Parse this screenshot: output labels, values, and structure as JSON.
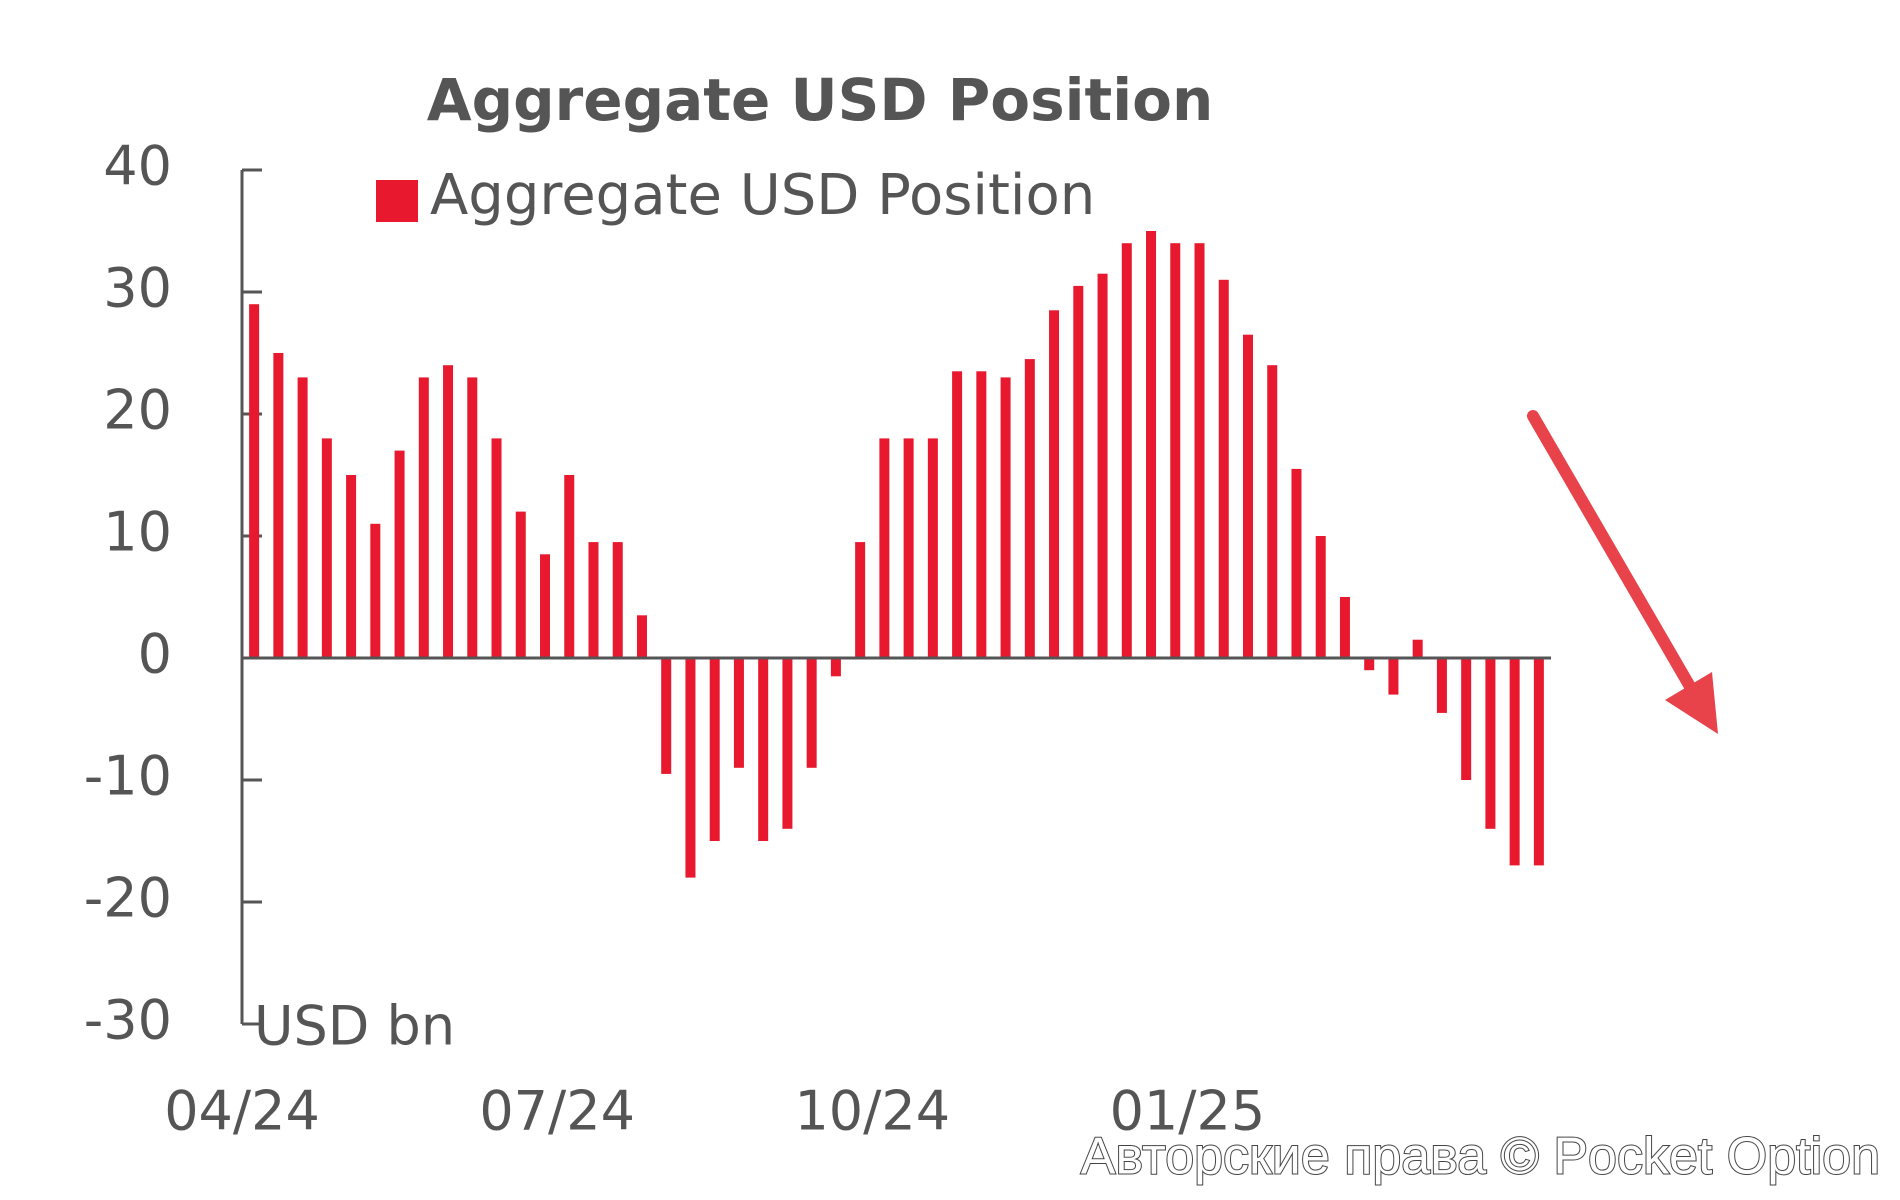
{
  "chart_data": {
    "type": "bar",
    "title": "Aggregate USD Position",
    "y_label": "USD bn",
    "series": [
      {
        "name": "Aggregate USD Position",
        "color": "#e8182e",
        "values": [
          29,
          25,
          23,
          18,
          15,
          11,
          17,
          23,
          24,
          23,
          18,
          12,
          8.5,
          15,
          9.5,
          9.5,
          3.5,
          -9.5,
          -18,
          -15,
          -9,
          -15,
          -14,
          -9,
          -1.5,
          9.5,
          18,
          18,
          18,
          23.5,
          23.5,
          23,
          24.5,
          28.5,
          30.5,
          31.5,
          34,
          35,
          34,
          34,
          31,
          26.5,
          24,
          15.5,
          10,
          5,
          -1,
          -3,
          1.5,
          -4.5,
          -10,
          -14,
          -17,
          -17
        ]
      }
    ],
    "categories": [
      "04/24",
      null,
      null,
      null,
      null,
      null,
      null,
      null,
      null,
      null,
      null,
      null,
      null,
      "07/24",
      null,
      null,
      null,
      null,
      null,
      null,
      null,
      null,
      null,
      null,
      null,
      null,
      "10/24",
      null,
      null,
      null,
      null,
      null,
      null,
      null,
      null,
      null,
      null,
      null,
      null,
      "01/25",
      null,
      null,
      null,
      null,
      null,
      null,
      null,
      null,
      null,
      null,
      null,
      null,
      null,
      null
    ],
    "ylim": [
      -30,
      40
    ],
    "yticks": [
      -30,
      -20,
      -10,
      0,
      10,
      20,
      30,
      40
    ],
    "legend": "top-left",
    "watermark": "Авторские права © Pocket Option"
  }
}
